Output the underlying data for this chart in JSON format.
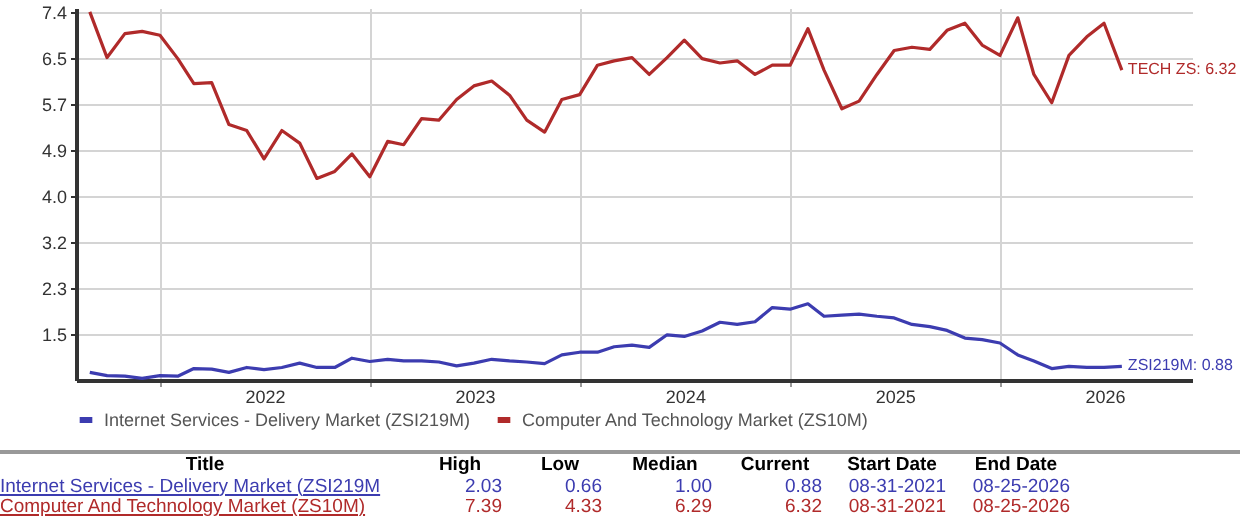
{
  "chart_data": {
    "type": "line",
    "x": [
      "2021-09",
      "2021-10",
      "2021-11",
      "2021-12",
      "2022-01",
      "2022-02",
      "2022-03",
      "2022-04",
      "2022-05",
      "2022-06",
      "2022-07",
      "2022-08",
      "2022-09",
      "2022-10",
      "2022-11",
      "2022-12",
      "2023-01",
      "2023-02",
      "2023-03",
      "2023-04",
      "2023-05",
      "2023-06",
      "2023-07",
      "2023-08",
      "2023-09",
      "2023-10",
      "2023-11",
      "2023-12",
      "2024-01",
      "2024-02",
      "2024-03",
      "2024-04",
      "2024-05",
      "2024-06",
      "2024-07",
      "2024-08",
      "2024-09",
      "2024-10",
      "2024-11",
      "2024-12",
      "2025-01",
      "2025-02",
      "2025-03",
      "2025-04",
      "2025-05",
      "2025-06",
      "2025-07",
      "2025-08",
      "2025-09",
      "2025-10",
      "2025-11",
      "2025-12",
      "2026-01",
      "2026-02",
      "2026-03",
      "2026-04",
      "2026-05",
      "2026-06",
      "2026-07",
      "2026-08"
    ],
    "series": [
      {
        "name": "Internet Services - Delivery Market (ZSI219M)",
        "color": "#3c3cb0",
        "values": [
          0.77,
          0.71,
          0.7,
          0.66,
          0.71,
          0.7,
          0.84,
          0.83,
          0.77,
          0.86,
          0.82,
          0.86,
          0.94,
          0.86,
          0.86,
          1.03,
          0.97,
          1.01,
          0.98,
          0.98,
          0.96,
          0.89,
          0.94,
          1.01,
          0.98,
          0.96,
          0.93,
          1.09,
          1.14,
          1.14,
          1.24,
          1.27,
          1.23,
          1.46,
          1.43,
          1.53,
          1.69,
          1.65,
          1.7,
          1.96,
          1.93,
          2.03,
          1.8,
          1.82,
          1.84,
          1.8,
          1.77,
          1.65,
          1.61,
          1.54,
          1.4,
          1.37,
          1.31,
          1.09,
          0.98,
          0.84,
          0.88,
          0.86,
          0.86,
          0.88
        ]
      },
      {
        "name": "Computer And Technology Market (ZS10M)",
        "color": "#b02a2a",
        "values": [
          7.39,
          6.55,
          6.99,
          7.03,
          6.96,
          6.53,
          6.07,
          6.09,
          5.32,
          5.21,
          4.69,
          5.21,
          4.98,
          4.33,
          4.46,
          4.78,
          4.36,
          5.01,
          4.95,
          5.43,
          5.4,
          5.78,
          6.03,
          6.12,
          5.86,
          5.4,
          5.18,
          5.78,
          5.87,
          6.41,
          6.49,
          6.55,
          6.24,
          6.55,
          6.87,
          6.53,
          6.45,
          6.49,
          6.24,
          6.41,
          6.41,
          7.08,
          6.32,
          5.61,
          5.75,
          6.24,
          6.68,
          6.74,
          6.7,
          7.05,
          7.18,
          6.78,
          6.59,
          7.28,
          6.24,
          5.72,
          6.59,
          6.93,
          7.18,
          6.32
        ]
      }
    ],
    "xlim": [
      "2021-08-08",
      "2026-12-01"
    ],
    "xticks": [
      {
        "value": "2022-01-01",
        "label": null
      },
      {
        "value": "2022-07-02",
        "label": "2022"
      },
      {
        "value": "2023-01-01",
        "label": null
      },
      {
        "value": "2023-07-02",
        "label": "2023"
      },
      {
        "value": "2024-01-01",
        "label": null
      },
      {
        "value": "2024-07-02",
        "label": "2024"
      },
      {
        "value": "2025-01-01",
        "label": null
      },
      {
        "value": "2025-07-02",
        "label": "2025"
      },
      {
        "value": "2026-01-01",
        "label": null
      },
      {
        "value": "2026-07-02",
        "label": "2026"
      }
    ],
    "ylim": [
      0.63,
      7.46
    ],
    "yticks": [
      {
        "value": 1.475,
        "label": "1.5"
      },
      {
        "value": 2.32,
        "label": "2.3"
      },
      {
        "value": 3.165,
        "label": "3.2"
      },
      {
        "value": 4.01,
        "label": "4.0"
      },
      {
        "value": 4.855,
        "label": "4.9"
      },
      {
        "value": 5.7,
        "label": "5.7"
      },
      {
        "value": 6.545,
        "label": "6.5"
      },
      {
        "value": 7.39,
        "label": "7.4"
      }
    ],
    "grid": true,
    "legend": "bottom",
    "annotations": [
      {
        "text": "TECH ZS: 6.32",
        "x": "2026-08",
        "y": 6.32
      },
      {
        "text": "ZSI219M: 0.88",
        "x": "2026-08",
        "y": 0.88
      },
      "Title",
      "High",
      "Low",
      "Median",
      "Current",
      "Start Date",
      "End Date",
      "Internet Services - Delivery Market (ZSI219M",
      "2.03",
      "0.66",
      "1.00",
      "0.88",
      "08-31-2021",
      "08-25-2026",
      "Computer And Technology Market (ZS10M)",
      "7.39",
      "4.33",
      "6.29",
      "6.32",
      "08-31-2021",
      "08-25-2026"
    ]
  }
}
